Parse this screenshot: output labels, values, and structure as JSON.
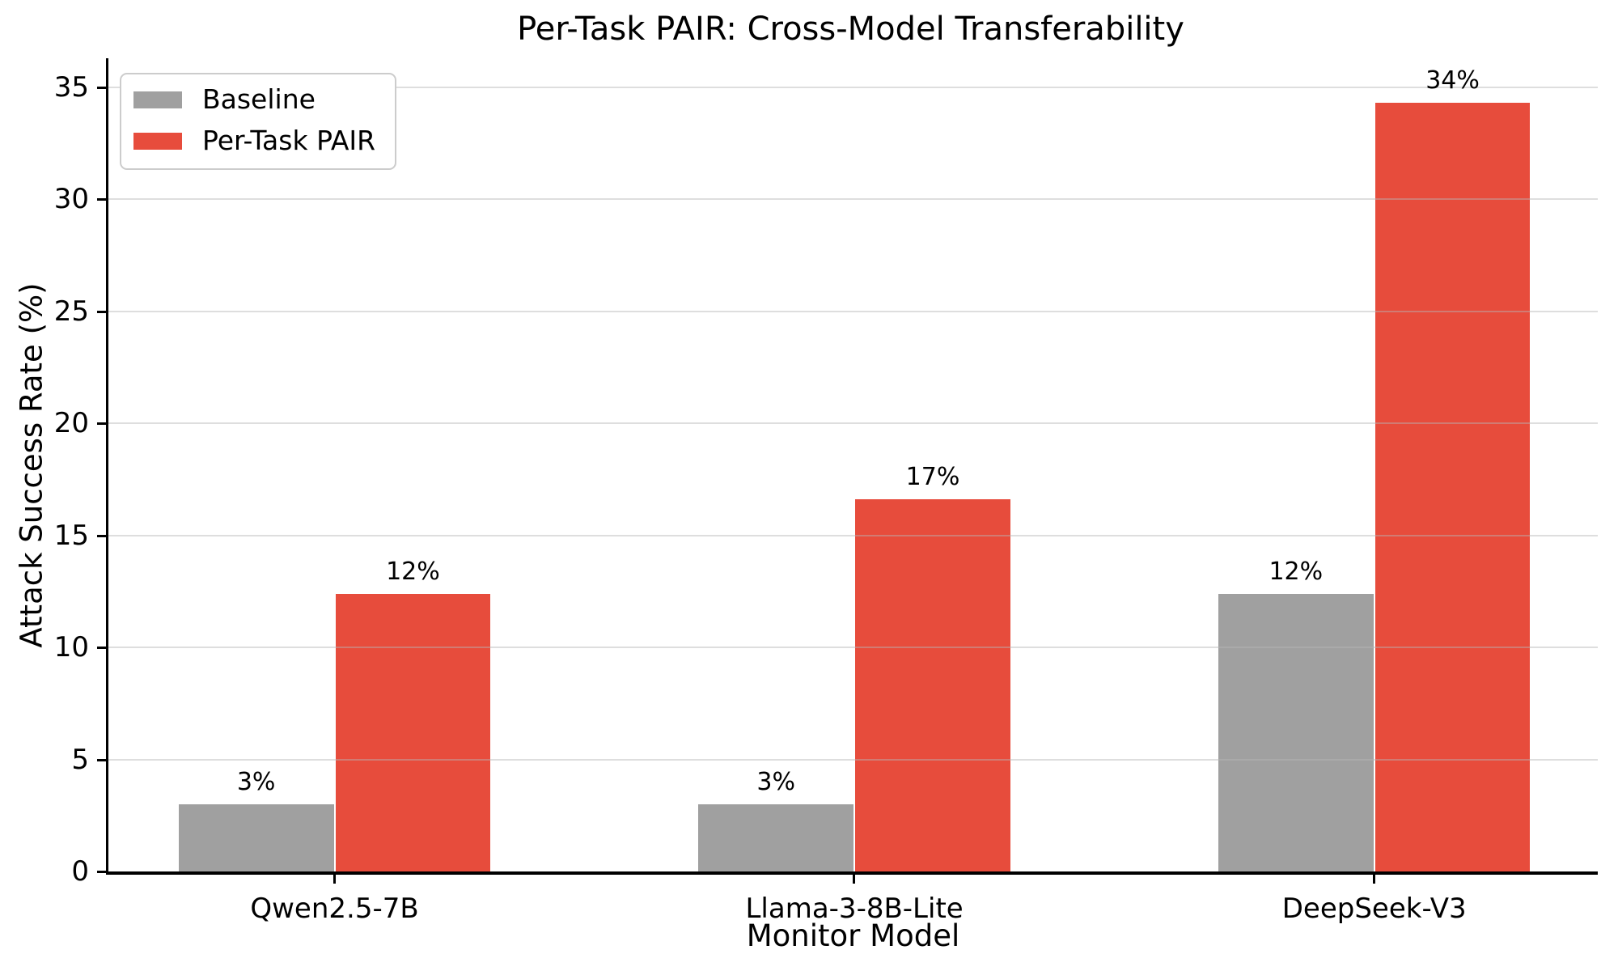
{
  "chart_data": {
    "type": "bar",
    "title": "Per-Task PAIR: Cross-Model Transferability",
    "xlabel": "Monitor Model",
    "ylabel": "Attack Success Rate (%)",
    "categories": [
      "Qwen2.5-7B",
      "Llama-3-8B-Lite",
      "DeepSeek-V3"
    ],
    "series": [
      {
        "name": "Baseline",
        "color": "#a0a0a0",
        "values": [
          3.0,
          3.0,
          12.4
        ],
        "labels": [
          "3%",
          "3%",
          "12%"
        ]
      },
      {
        "name": "Per-Task PAIR",
        "color": "#e74c3c",
        "values": [
          12.4,
          16.6,
          34.3
        ],
        "labels": [
          "12%",
          "17%",
          "34%"
        ]
      }
    ],
    "yticks": [
      0,
      5,
      10,
      15,
      20,
      25,
      30,
      35
    ],
    "ylim": [
      0,
      36.3
    ],
    "grid": "horizontal",
    "legend_position": "upper-left"
  }
}
